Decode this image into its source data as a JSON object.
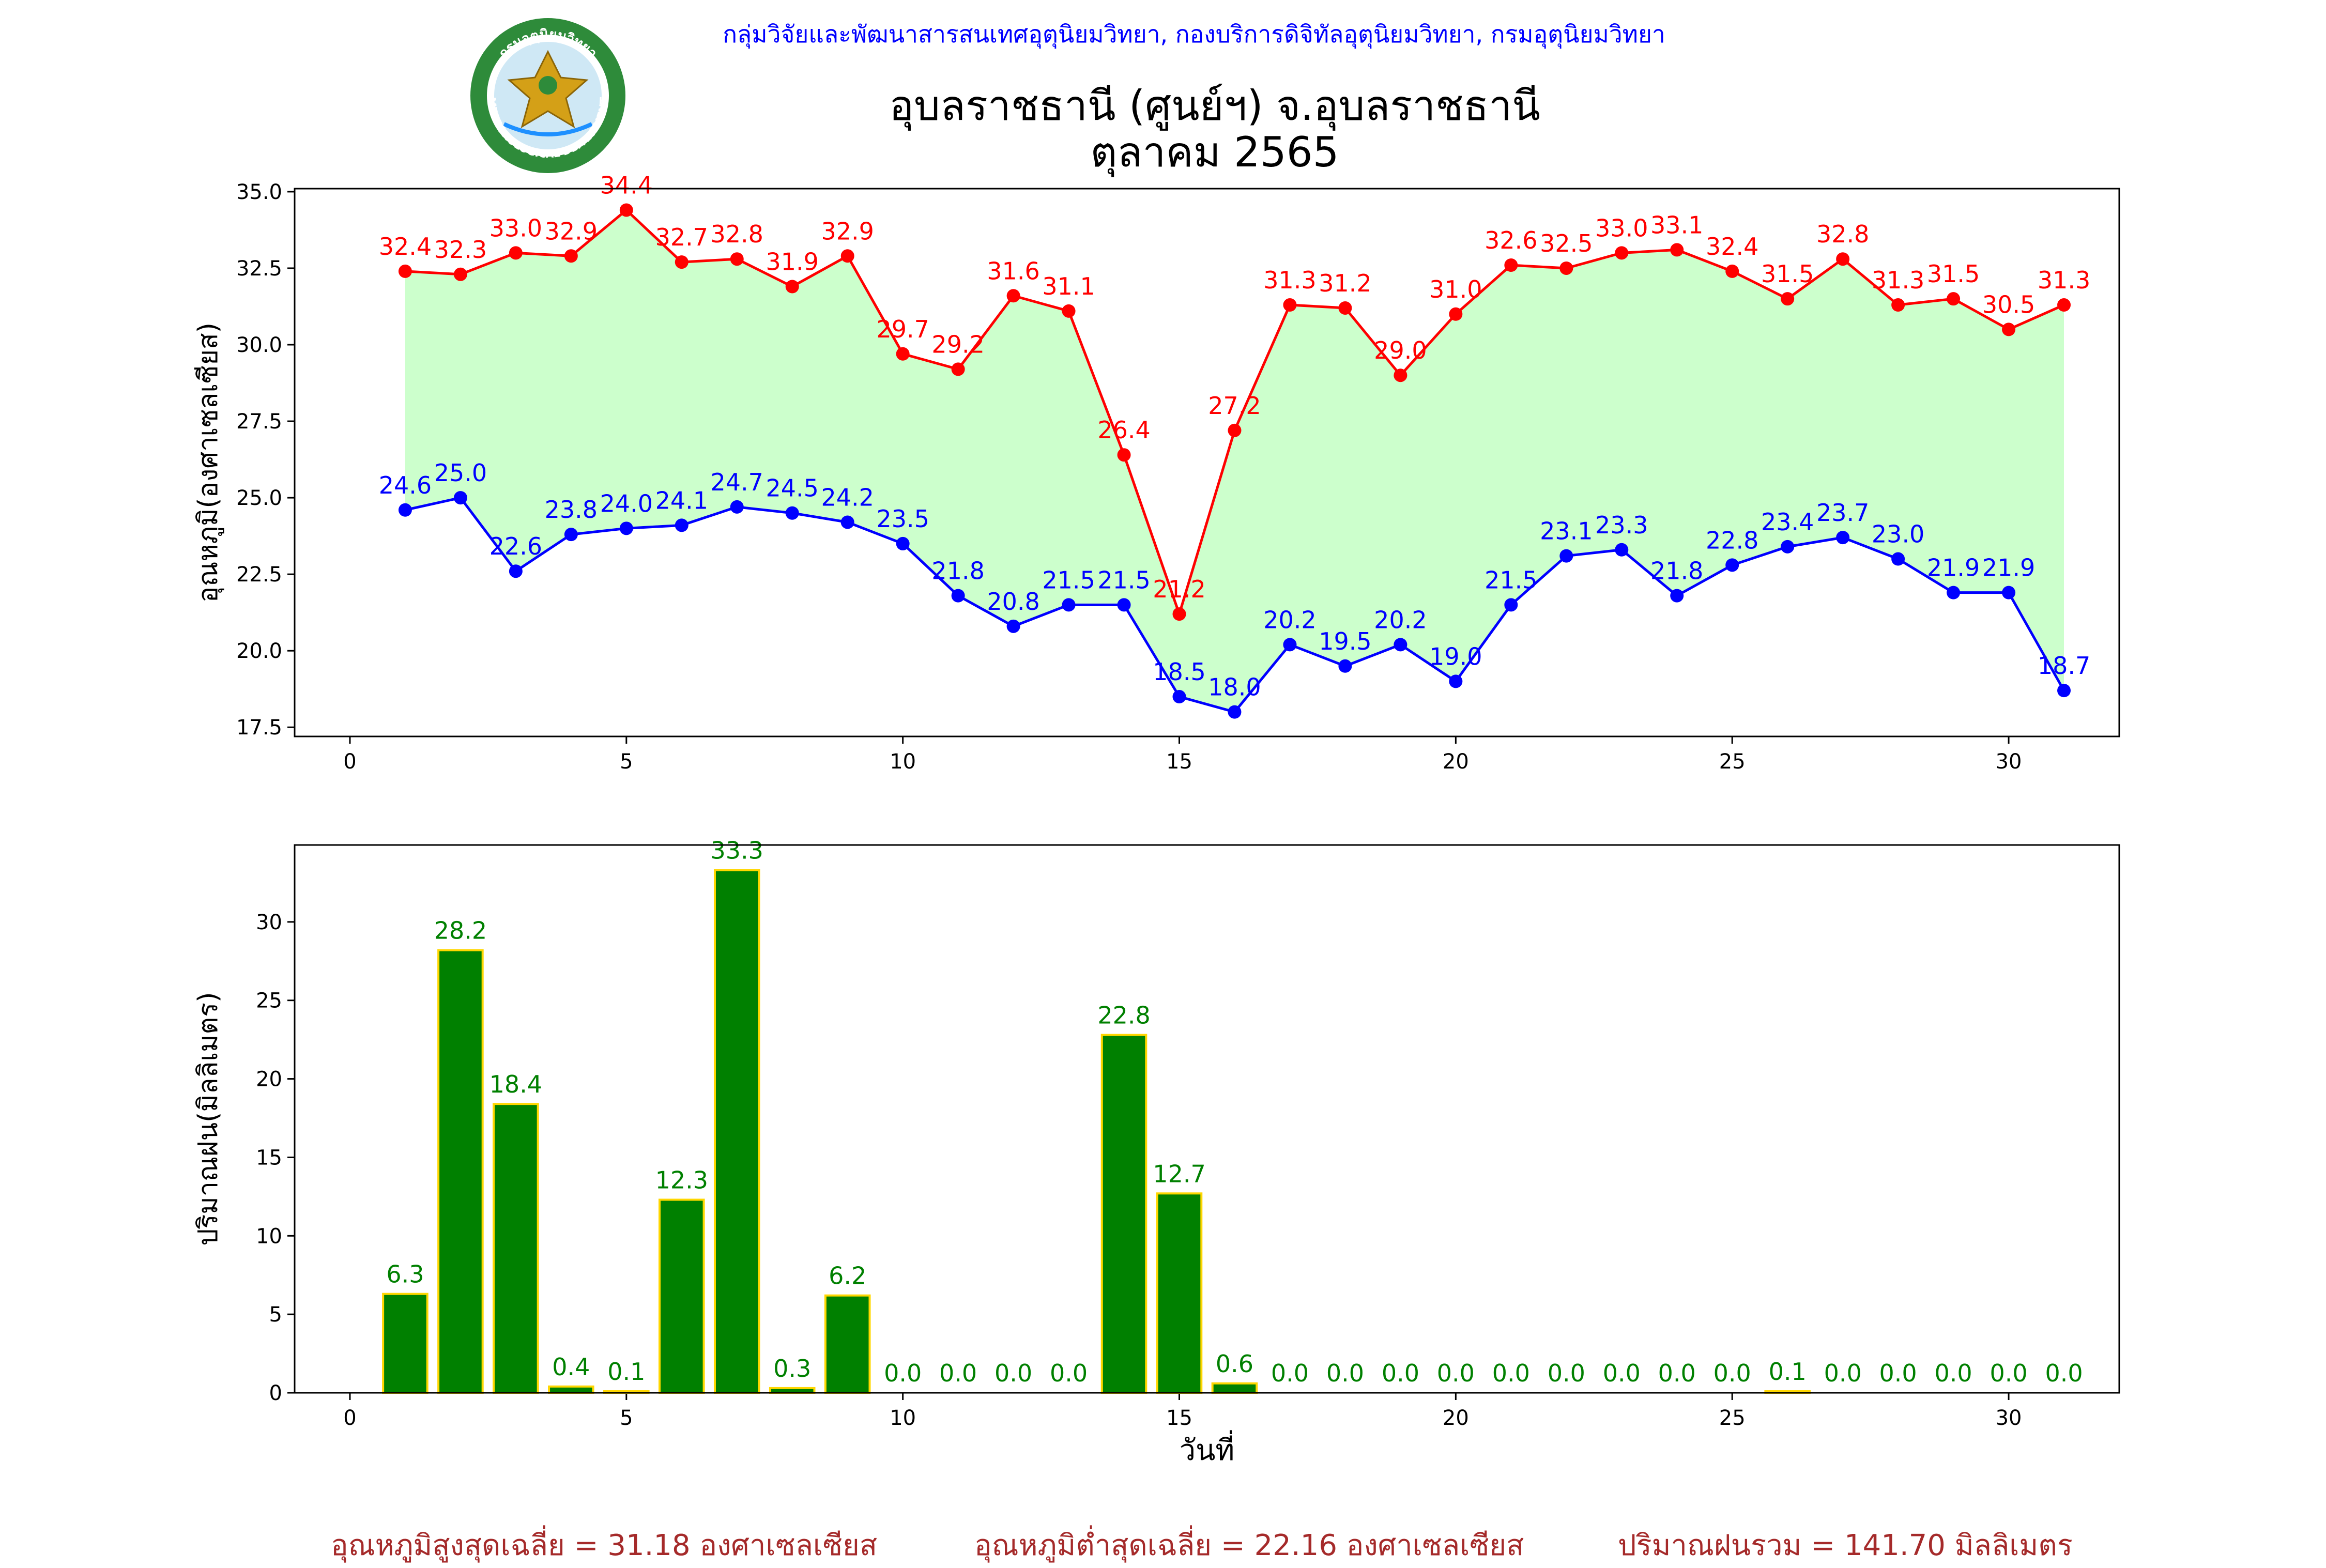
{
  "header": {
    "credit": "กลุ่มวิจัยและพัฒนาสารสนเทศอุตุนิยมวิทยา, กองบริการดิจิทัลอุตุนิยมวิทยา, กรมอุตุนิยมวิทยา",
    "title_line1": "อุบลราชธานี (ศูนย์ฯ) จ.อุบลราชธานี",
    "title_line2": "ตุลาคม 2565",
    "logo_top_text": "กรมอุตุนิยมวิทยา",
    "logo_bottom_text": "METEOROLOGICAL DEPARTMENT"
  },
  "chart_data": [
    {
      "type": "line",
      "ylabel": "อุณหภูมิ(องศาเซลเซียส)",
      "xlabel": "",
      "xlim": [
        -1,
        32
      ],
      "ylim": [
        17.2,
        35.1
      ],
      "xticks": [
        0,
        5,
        10,
        15,
        20,
        25,
        30
      ],
      "yticks": [
        17.5,
        20.0,
        22.5,
        25.0,
        27.5,
        30.0,
        32.5,
        35.0
      ],
      "x": [
        1,
        2,
        3,
        4,
        5,
        6,
        7,
        8,
        9,
        10,
        11,
        12,
        13,
        14,
        15,
        16,
        17,
        18,
        19,
        20,
        21,
        22,
        23,
        24,
        25,
        26,
        27,
        28,
        29,
        30,
        31
      ],
      "fill_between": true,
      "fill_color": "#ccffcc",
      "series": [
        {
          "color": "#ff0000",
          "values": [
            32.4,
            32.3,
            33.0,
            32.9,
            34.4,
            32.7,
            32.8,
            31.9,
            32.9,
            29.7,
            29.2,
            31.6,
            31.1,
            26.4,
            21.2,
            27.2,
            31.3,
            31.2,
            29.0,
            31.0,
            32.6,
            32.5,
            33.0,
            33.1,
            32.4,
            31.5,
            32.8,
            31.3,
            31.5,
            30.5,
            31.3
          ]
        },
        {
          "color": "#0000ff",
          "values": [
            24.6,
            25.0,
            22.6,
            23.8,
            24.0,
            24.1,
            24.7,
            24.5,
            24.2,
            23.5,
            21.8,
            20.8,
            21.5,
            21.5,
            18.5,
            18.0,
            20.2,
            19.5,
            20.2,
            19.0,
            21.5,
            23.1,
            23.3,
            21.8,
            22.8,
            23.4,
            23.7,
            23.0,
            21.9,
            21.9,
            18.7
          ]
        }
      ]
    },
    {
      "type": "bar",
      "ylabel": "ปริมาณฝน(มิลลิเมตร)",
      "xlabel": "วันที่",
      "xlim": [
        -1,
        32
      ],
      "ylim": [
        0,
        34.9
      ],
      "xticks": [
        0,
        5,
        10,
        15,
        20,
        25,
        30
      ],
      "yticks": [
        0,
        5,
        10,
        15,
        20,
        25,
        30
      ],
      "bar_color": "#008000",
      "edge_color": "#ffd700",
      "label_color": "#008000",
      "x": [
        1,
        2,
        3,
        4,
        5,
        6,
        7,
        8,
        9,
        10,
        11,
        12,
        13,
        14,
        15,
        16,
        17,
        18,
        19,
        20,
        21,
        22,
        23,
        24,
        25,
        26,
        27,
        28,
        29,
        30,
        31
      ],
      "values": [
        6.3,
        28.2,
        18.4,
        0.4,
        0.1,
        12.3,
        33.3,
        0.3,
        6.2,
        0.0,
        0.0,
        0.0,
        0.0,
        22.8,
        12.7,
        0.6,
        0.0,
        0.0,
        0.0,
        0.0,
        0.0,
        0.0,
        0.0,
        0.0,
        0.0,
        0.1,
        0.0,
        0.0,
        0.0,
        0.0,
        0.0
      ]
    }
  ],
  "summary": {
    "avg_max": "อุณหภูมิสูงสุดเฉลี่ย = 31.18 องศาเซลเซียส",
    "avg_min": "อุณหภูมิต่ำสุดเฉลี่ย = 22.16 องศาเซลเซียส",
    "total_rain": "ปริมาณฝนรวม = 141.70 มิลลิเมตร"
  }
}
